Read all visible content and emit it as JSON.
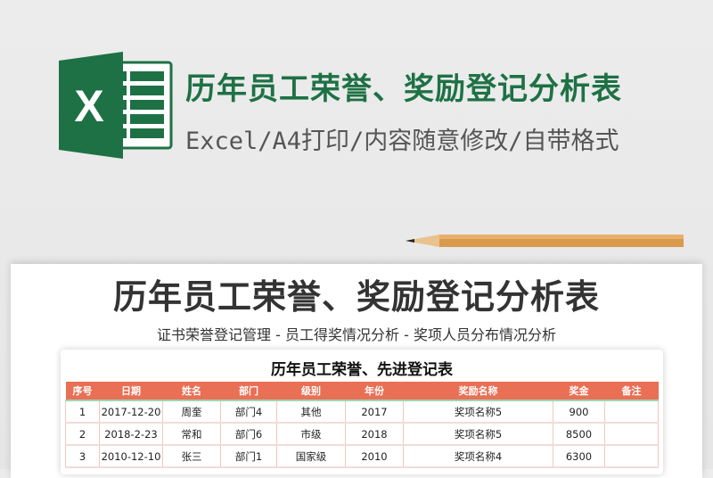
{
  "header": {
    "title": "历年员工荣誉、奖励登记分析表",
    "subtitle": "Excel/A4打印/内容随意修改/自带格式",
    "logo_letter": "X"
  },
  "sheet": {
    "title": "历年员工荣誉、奖励登记分析表",
    "subtitle": "证书荣誉登记管理 - 员工得奖情况分析 - 奖项人员分布情况分析",
    "table_title": "历年员工荣誉、先进登记表",
    "columns": [
      "序号",
      "日期",
      "姓名",
      "部门",
      "级别",
      "年份",
      "奖励名称",
      "奖金",
      "备注"
    ],
    "rows": [
      [
        "1",
        "2017-12-20",
        "周奎",
        "部门4",
        "其他",
        "2017",
        "奖项名称5",
        "900",
        ""
      ],
      [
        "2",
        "2018-2-23",
        "常和",
        "部门6",
        "市级",
        "2018",
        "奖项名称5",
        "8500",
        ""
      ],
      [
        "3",
        "2010-12-10",
        "张三",
        "部门1",
        "国家级",
        "2010",
        "奖项名称4",
        "6300",
        ""
      ]
    ]
  },
  "colors": {
    "brand_green": "#1e7145",
    "header_orange": "#e96f55"
  }
}
